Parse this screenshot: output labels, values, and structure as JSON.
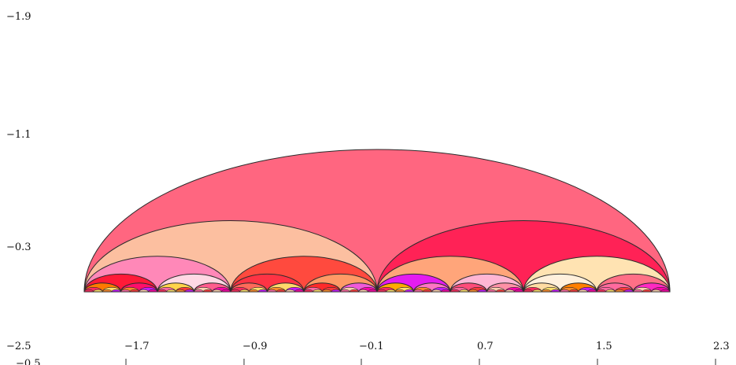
{
  "chart_data": {
    "type": "other",
    "y_tick_labels": [
      "−1.9",
      "−1.1",
      "−0.3"
    ],
    "x_tick_labels": [
      "−2.5",
      "−1.7",
      "−0.9",
      "−0.1",
      "0.7",
      "1.5",
      "2.3"
    ],
    "partial_label": "−0.5",
    "x_ticks": [
      -2.5,
      -1.7,
      -0.9,
      -0.1,
      0.7,
      1.5,
      2.3
    ],
    "y_ticks": [
      -1.9,
      -1.1,
      -0.3
    ],
    "xlim": [
      -2.5,
      2.5
    ],
    "ylim": [
      -2.0,
      0.6
    ],
    "baseline_y": 0.0,
    "arcs": [
      {
        "center": 0.0,
        "radius": 2.0,
        "color": "#ff6680"
      },
      {
        "center": -1.0,
        "radius": 1.0,
        "color": "#fcbfa0"
      },
      {
        "center": 1.0,
        "radius": 1.0,
        "color": "#ff2256"
      },
      {
        "center": -1.5,
        "radius": 0.5,
        "color": "#ff88b8"
      },
      {
        "center": -0.5,
        "radius": 0.5,
        "color": "#ff4a3e"
      },
      {
        "center": 0.5,
        "radius": 0.5,
        "color": "#ffa57a"
      },
      {
        "center": 1.5,
        "radius": 0.5,
        "color": "#ffe3b2"
      },
      {
        "center": -1.75,
        "radius": 0.25,
        "color": "#ff1a38"
      },
      {
        "center": -1.25,
        "radius": 0.25,
        "color": "#ffd9e4"
      },
      {
        "center": -0.75,
        "radius": 0.25,
        "color": "#ff3344"
      },
      {
        "center": -0.25,
        "radius": 0.25,
        "color": "#ff9a66"
      },
      {
        "center": 0.25,
        "radius": 0.25,
        "color": "#e41cf0"
      },
      {
        "center": 0.75,
        "radius": 0.25,
        "color": "#ffb6d4"
      },
      {
        "center": 1.25,
        "radius": 0.25,
        "color": "#fff0dc"
      },
      {
        "center": 1.75,
        "radius": 0.25,
        "color": "#ff6f86"
      },
      {
        "center": -1.875,
        "radius": 0.125,
        "color": "#ff7a00"
      },
      {
        "center": -1.625,
        "radius": 0.125,
        "color": "#ff0f6a"
      },
      {
        "center": -1.375,
        "radius": 0.125,
        "color": "#ffd34a"
      },
      {
        "center": -1.125,
        "radius": 0.125,
        "color": "#ff5c8d"
      },
      {
        "center": -0.875,
        "radius": 0.125,
        "color": "#ff6a5a"
      },
      {
        "center": -0.625,
        "radius": 0.125,
        "color": "#ffd86b"
      },
      {
        "center": -0.375,
        "radius": 0.125,
        "color": "#ff2a2a"
      },
      {
        "center": -0.125,
        "radius": 0.125,
        "color": "#f05ad9"
      },
      {
        "center": 0.125,
        "radius": 0.125,
        "color": "#ffaa00"
      },
      {
        "center": 0.375,
        "radius": 0.125,
        "color": "#ff74c4"
      },
      {
        "center": 0.625,
        "radius": 0.125,
        "color": "#ff4c7a"
      },
      {
        "center": 0.875,
        "radius": 0.125,
        "color": "#ff90a6"
      },
      {
        "center": 1.125,
        "radius": 0.125,
        "color": "#ffdca3"
      },
      {
        "center": 1.375,
        "radius": 0.125,
        "color": "#ff7f00"
      },
      {
        "center": 1.625,
        "radius": 0.125,
        "color": "#ff6a9e"
      },
      {
        "center": 1.875,
        "radius": 0.125,
        "color": "#ff2ac2"
      }
    ]
  }
}
